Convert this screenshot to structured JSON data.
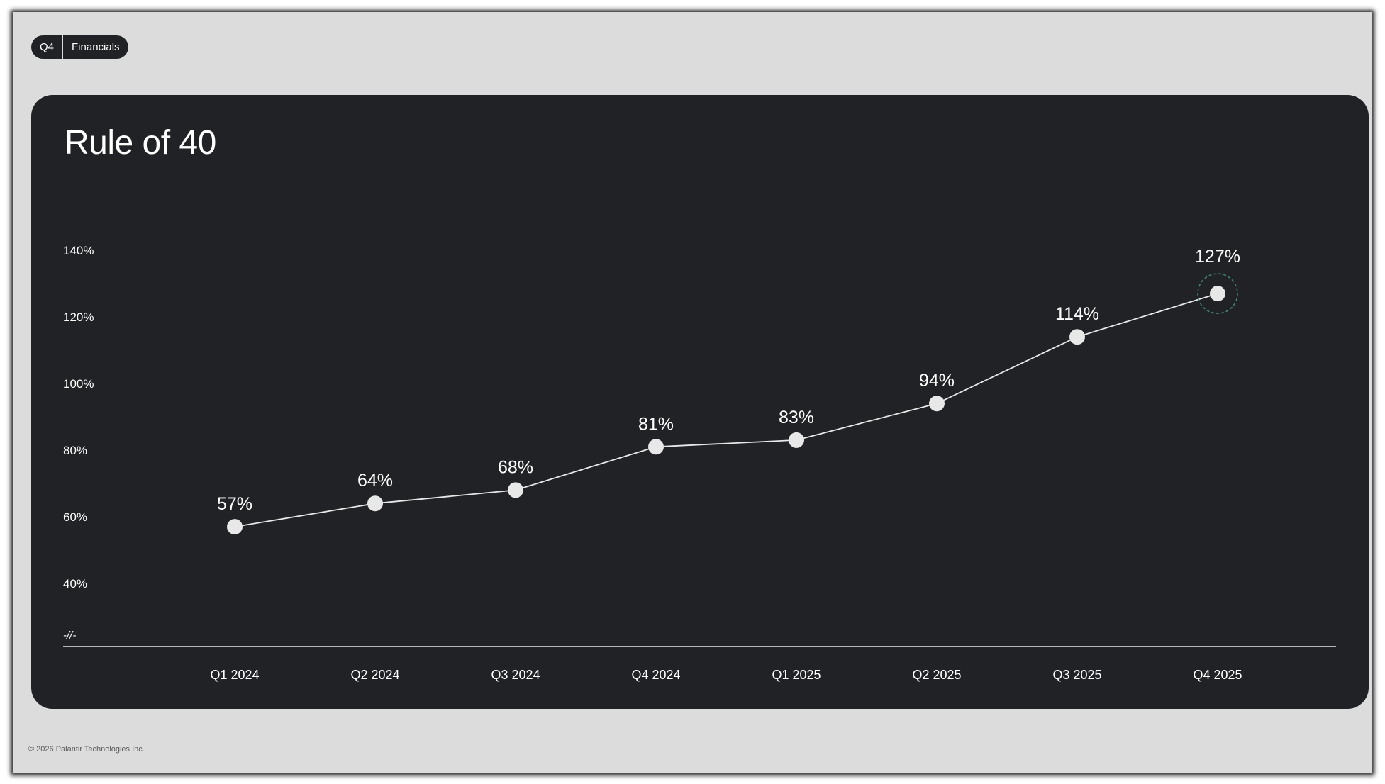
{
  "header": {
    "tag_quarter": "Q4",
    "tag_section": "Financials"
  },
  "footer": {
    "copyright": "© 2026 Palantir Technologies Inc."
  },
  "colors": {
    "slide_background": "#dcdcdc",
    "panel_background": "#202225",
    "line": "#e8e8e8",
    "point": "#e8e8e8",
    "highlight_ring": "#3f8a78",
    "text": "#ffffff"
  },
  "chart_data": {
    "type": "line",
    "title": "Rule of 40",
    "xlabel": "",
    "ylabel": "",
    "categories": [
      "Q1 2024",
      "Q2 2024",
      "Q3 2024",
      "Q4 2024",
      "Q1 2025",
      "Q2 2025",
      "Q3 2025",
      "Q4 2025"
    ],
    "series": [
      {
        "values": [
          57,
          64,
          68,
          81,
          83,
          94,
          114,
          127
        ],
        "data_labels": [
          "57%",
          "64%",
          "68%",
          "81%",
          "83%",
          "94%",
          "114%",
          "127%"
        ]
      }
    ],
    "y_ticks": [
      40,
      60,
      80,
      100,
      120,
      140
    ],
    "y_tick_labels": [
      "40%",
      "60%",
      "80%",
      "100%",
      "120%",
      "140%"
    ],
    "axis_break_symbol": "-//-",
    "highlighted_category": "Q4 2025",
    "ylim": [
      40,
      140
    ],
    "grid": false,
    "legend": "none"
  }
}
